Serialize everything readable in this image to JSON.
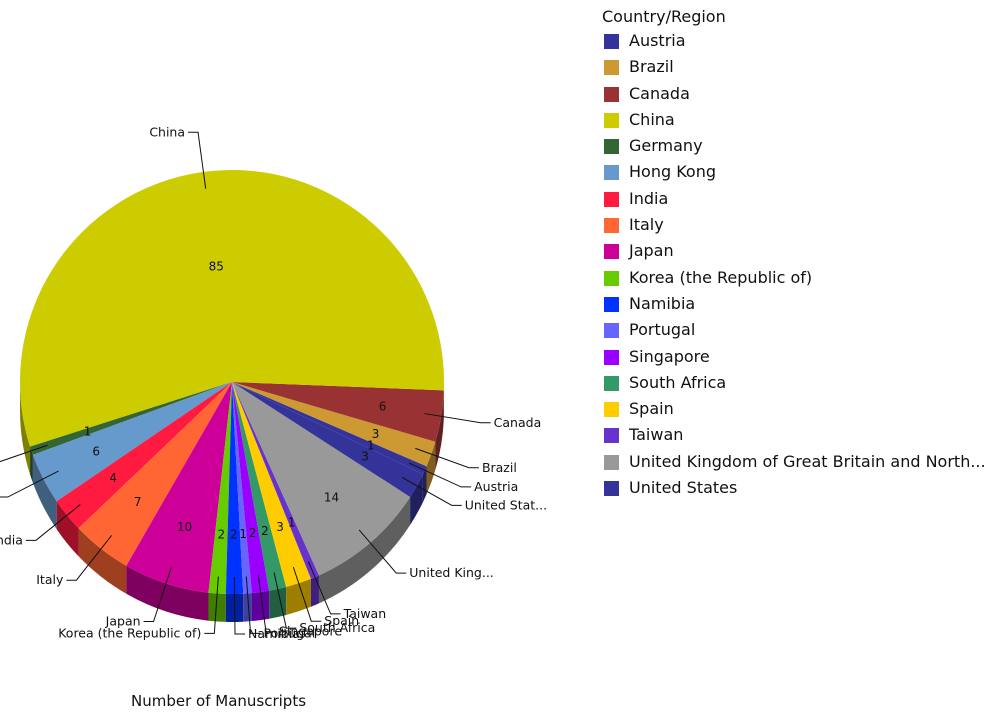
{
  "chart_data": {
    "type": "pie",
    "title": "",
    "xlabel": "Number of Manuscripts",
    "legend_title": "Country/Region",
    "legend_position": "right",
    "slices": [
      {
        "label": "Austria",
        "callout": "Austria",
        "value": 1,
        "color": "#33339a"
      },
      {
        "label": "Brazil",
        "callout": "Brazil",
        "value": 3,
        "color": "#cc9933"
      },
      {
        "label": "Canada",
        "callout": "Canada",
        "value": 6,
        "color": "#993333"
      },
      {
        "label": "China",
        "callout": "China",
        "value": 85,
        "color": "#cccc00"
      },
      {
        "label": "Germany",
        "callout": "Germany",
        "value": 1,
        "color": "#336633"
      },
      {
        "label": "Hong Kong",
        "callout": "Hong Kong",
        "value": 6,
        "color": "#6699cc"
      },
      {
        "label": "India",
        "callout": "India",
        "value": 4,
        "color": "#ff1a40"
      },
      {
        "label": "Italy",
        "callout": "Italy",
        "value": 7,
        "color": "#ff6633"
      },
      {
        "label": "Japan",
        "callout": "Japan",
        "value": 10,
        "color": "#cc0099"
      },
      {
        "label": "Korea (the Republic of)",
        "callout": "Korea (the Republic of)",
        "value": 2,
        "color": "#66cc00"
      },
      {
        "label": "Namibia",
        "callout": "Namibia",
        "value": 2,
        "color": "#0033ff"
      },
      {
        "label": "Portugal",
        "callout": "Portugal",
        "value": 1,
        "color": "#6666ff"
      },
      {
        "label": "Singapore",
        "callout": "Singapore",
        "value": 2,
        "color": "#9900ff"
      },
      {
        "label": "South Africa",
        "callout": "South Africa",
        "value": 2,
        "color": "#339966"
      },
      {
        "label": "Spain",
        "callout": "Spain",
        "value": 3,
        "color": "#ffcc00"
      },
      {
        "label": "Taiwan",
        "callout": "Taiwan",
        "value": 1,
        "color": "#6633cc"
      },
      {
        "label": "United Kingdom of Great Britain and North...",
        "callout": "United King...",
        "value": 14,
        "color": "#999999"
      },
      {
        "label": "United States",
        "callout": "United Stat...",
        "value": 3,
        "color": "#333399"
      }
    ]
  }
}
